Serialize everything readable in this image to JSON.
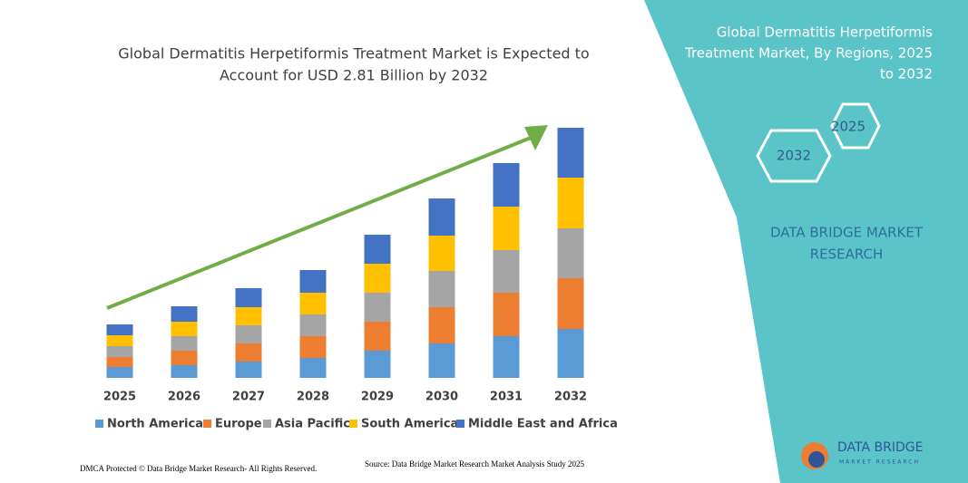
{
  "chart_data": {
    "type": "bar",
    "stacked": true,
    "title": [
      "Global Dermatitis Herpetiformis Treatment Market is Expected to",
      "Account for USD 2.81 Billion by 2032"
    ],
    "categories": [
      "2025",
      "2026",
      "2027",
      "2028",
      "2029",
      "2030",
      "2031",
      "2032"
    ],
    "series": [
      {
        "name": "North America",
        "color": "#5b9bd5",
        "values": [
          12,
          14,
          18,
          22,
          30,
          38,
          46,
          54
        ]
      },
      {
        "name": "Europe",
        "color": "#ed7d31",
        "values": [
          11,
          16,
          20,
          24,
          32,
          40,
          48,
          56
        ]
      },
      {
        "name": "Asia Pacific",
        "color": "#a5a5a5",
        "values": [
          12,
          16,
          20,
          24,
          32,
          40,
          47,
          55
        ]
      },
      {
        "name": "South America",
        "color": "#ffc000",
        "values": [
          12,
          16,
          20,
          24,
          32,
          39,
          48,
          56
        ]
      },
      {
        "name": "Middle East and Africa",
        "color": "#4472c4",
        "values": [
          12,
          17,
          21,
          25,
          32,
          41,
          48,
          55
        ]
      }
    ]
  },
  "panel": {
    "title": [
      "Global Dermatitis Herpetiformis",
      "Treatment Market, By Regions, 2025",
      "to 2032"
    ],
    "hexagons": [
      "2025",
      "2032"
    ],
    "brand": [
      "DATA BRIDGE MARKET",
      "RESEARCH"
    ]
  },
  "logo": {
    "name": "DATA BRIDGE",
    "tagline": "MARKET RESEARCH"
  },
  "footer": {
    "dmca": "DMCA Protected © Data Bridge Market Research- All Rights Reserved.",
    "source": "Source: Data Bridge Market Research Market Analysis Study 2025"
  }
}
